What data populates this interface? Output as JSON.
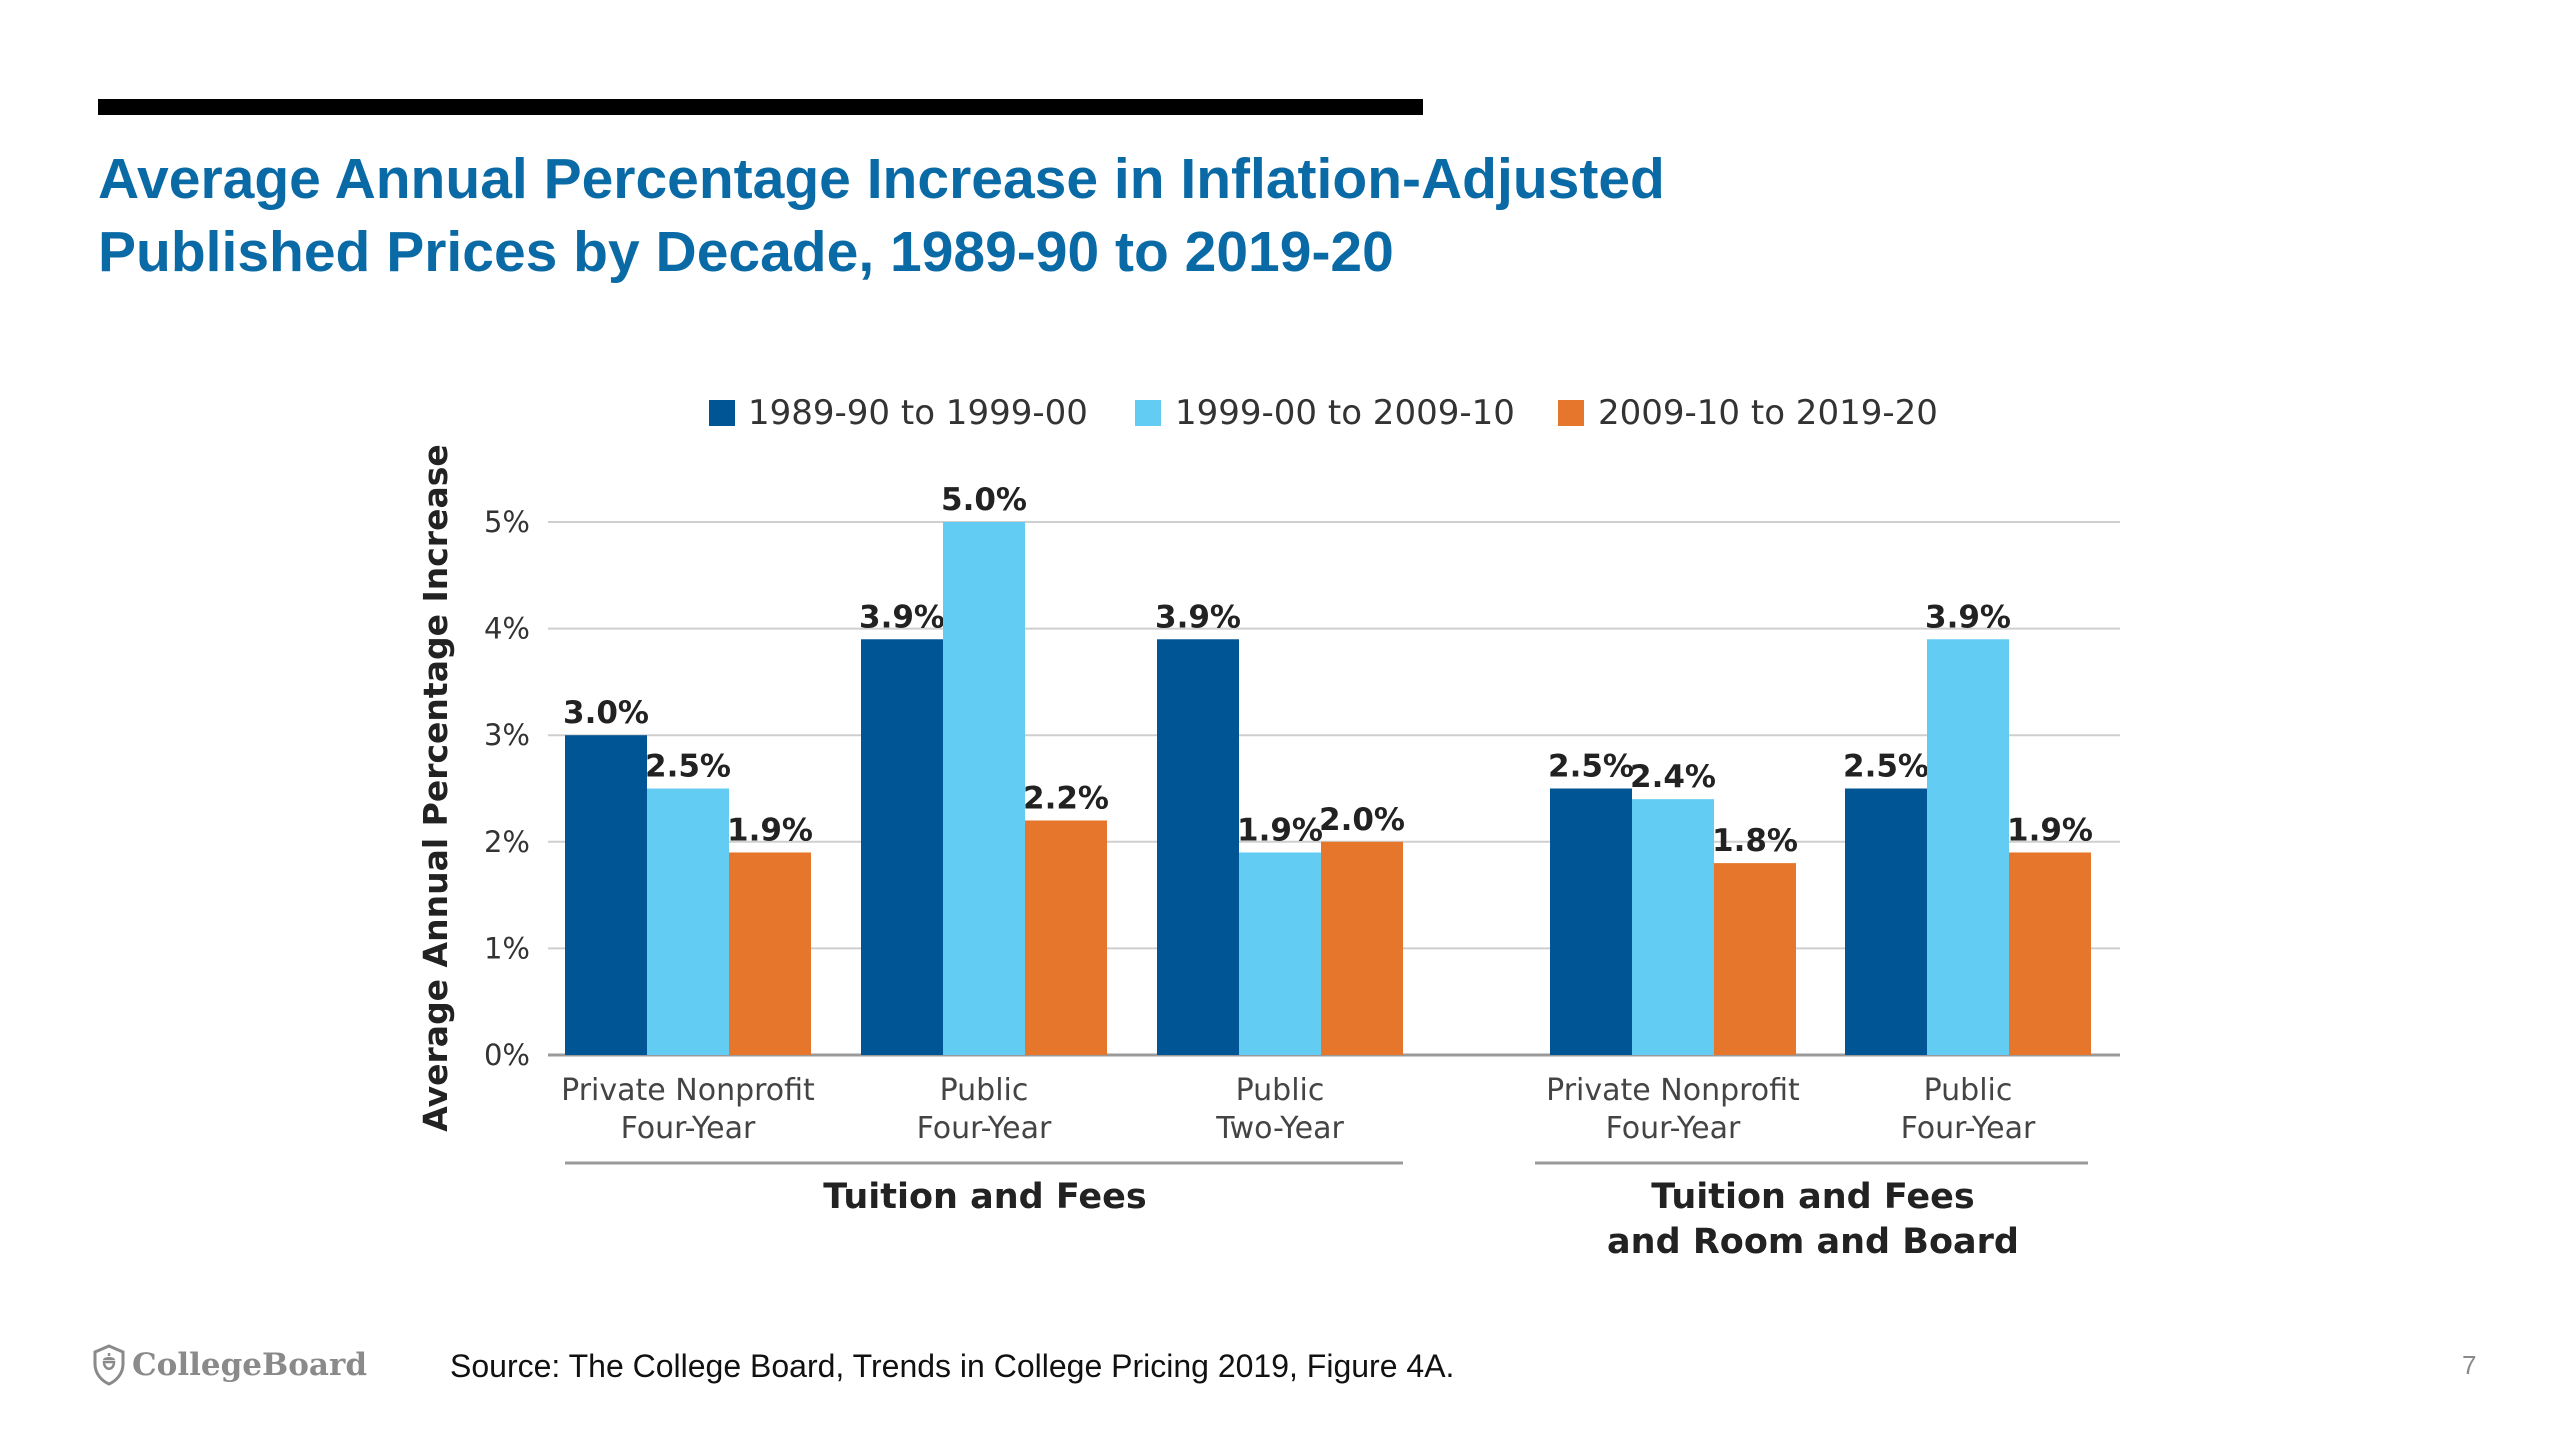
{
  "slide": {
    "title_line1": "Average Annual Percentage Increase in Inflation-Adjusted",
    "title_line2": "Published Prices by Decade, 1989-90 to 2019-20",
    "source": "Source: The College Board, Trends in College Pricing 2019, Figure 4A.",
    "page_number": "7",
    "logo_text": "CollegeBoard",
    "logo_icon": "acorn-shield-icon"
  },
  "chart_data": {
    "type": "bar",
    "title": "",
    "ylabel": "Average Annual Percentage Increase",
    "ylim": [
      0,
      5
    ],
    "yticks": [
      "0%",
      "1%",
      "2%",
      "3%",
      "4%",
      "5%"
    ],
    "grid": true,
    "legend_position": "top",
    "categories": [
      [
        "Private Nonprofit",
        "Four-Year"
      ],
      [
        "Public",
        "Four-Year"
      ],
      [
        "Public",
        "Two-Year"
      ],
      [
        "Private Nonprofit",
        "Four-Year"
      ],
      [
        "Public",
        "Four-Year"
      ]
    ],
    "groups": [
      {
        "label": [
          "Tuition and Fees"
        ],
        "categories": [
          0,
          1,
          2
        ]
      },
      {
        "label": [
          "Tuition and Fees",
          "and Room and Board"
        ],
        "categories": [
          3,
          4
        ]
      }
    ],
    "series": [
      {
        "name": "1989-90 to 1999-00",
        "color": "#005594",
        "values": [
          3.0,
          3.9,
          3.9,
          2.5,
          2.5
        ],
        "labels": [
          "3.0%",
          "3.9%",
          "3.9%",
          "2.5%",
          "2.5%"
        ]
      },
      {
        "name": "1999-00 to 2009-10",
        "color": "#62ccf2",
        "values": [
          2.5,
          5.0,
          1.9,
          2.4,
          3.9
        ],
        "labels": [
          "2.5%",
          "5.0%",
          "1.9%",
          "2.4%",
          "3.9%"
        ]
      },
      {
        "name": "2009-10 to 2019-20",
        "color": "#e6762b",
        "values": [
          1.9,
          2.2,
          2.0,
          1.8,
          1.9
        ],
        "labels": [
          "1.9%",
          "2.2%",
          "2.0%",
          "1.8%",
          "1.9%"
        ]
      }
    ]
  }
}
